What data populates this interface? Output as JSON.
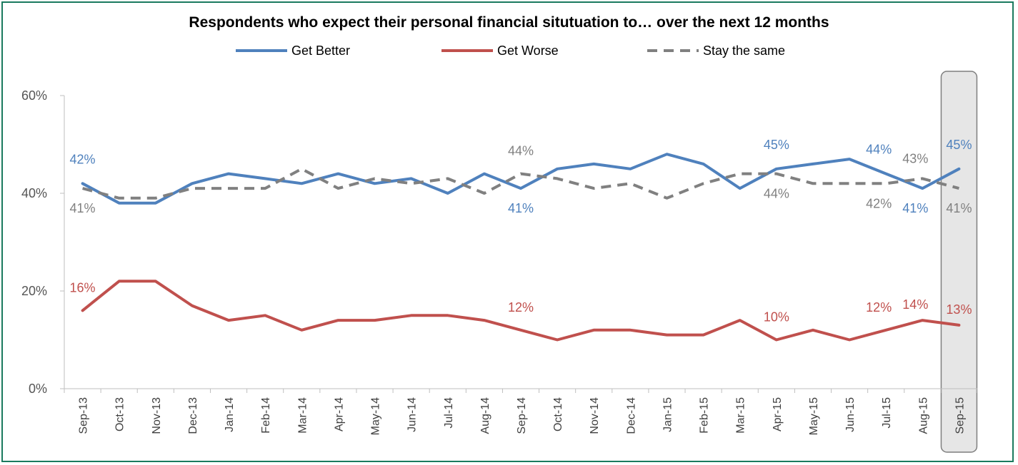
{
  "chart_data": {
    "type": "line",
    "title": "Respondents who expect their personal financial situtuation to… over the next 12 months",
    "categories": [
      "Sep-13",
      "Oct-13",
      "Nov-13",
      "Dec-13",
      "Jan-14",
      "Feb-14",
      "Mar-14",
      "Apr-14",
      "May-14",
      "Jun-14",
      "Jul-14",
      "Aug-14",
      "Sep-14",
      "Oct-14",
      "Nov-14",
      "Dec-14",
      "Jan-15",
      "Feb-15",
      "Mar-15",
      "Apr-15",
      "May-15",
      "Jun-15",
      "Jul-15",
      "Aug-15",
      "Sep-15"
    ],
    "ylim": [
      0,
      60
    ],
    "yticks": [
      0,
      20,
      40,
      60
    ],
    "ytick_labels": [
      "0%",
      "20%",
      "40%",
      "60%"
    ],
    "grid": false,
    "legend_position": "top",
    "highlight_category": "Sep-15",
    "series": [
      {
        "name": "Get Better",
        "color": "#4f81bd",
        "style": "solid",
        "values": [
          42,
          38,
          38,
          42,
          44,
          43,
          42,
          44,
          42,
          43,
          40,
          44,
          41,
          45,
          46,
          45,
          48,
          46,
          41,
          45,
          46,
          47,
          44,
          41,
          45
        ],
        "labels": [
          {
            "index": 0,
            "text": "42%"
          },
          {
            "index": 12,
            "text": "41%"
          },
          {
            "index": 19,
            "text": "45%"
          },
          {
            "index": 22,
            "text": "44%"
          },
          {
            "index": 23,
            "text": "41%"
          },
          {
            "index": 24,
            "text": "45%"
          }
        ]
      },
      {
        "name": "Get Worse",
        "color": "#c0504d",
        "style": "solid",
        "values": [
          16,
          22,
          22,
          17,
          14,
          15,
          12,
          14,
          14,
          15,
          15,
          14,
          12,
          10,
          12,
          12,
          11,
          11,
          14,
          10,
          12,
          10,
          12,
          14,
          13
        ],
        "labels": [
          {
            "index": 0,
            "text": "16%"
          },
          {
            "index": 12,
            "text": "12%"
          },
          {
            "index": 19,
            "text": "10%"
          },
          {
            "index": 22,
            "text": "12%"
          },
          {
            "index": 23,
            "text": "14%"
          },
          {
            "index": 24,
            "text": "13%"
          }
        ]
      },
      {
        "name": "Stay the same",
        "color": "#808080",
        "style": "dashed",
        "values": [
          41,
          39,
          39,
          41,
          41,
          41,
          45,
          41,
          43,
          42,
          43,
          40,
          44,
          43,
          41,
          42,
          39,
          42,
          44,
          44,
          42,
          42,
          42,
          43,
          41
        ],
        "labels": [
          {
            "index": 0,
            "text": "41%"
          },
          {
            "index": 12,
            "text": "44%"
          },
          {
            "index": 19,
            "text": "44%"
          },
          {
            "index": 22,
            "text": "42%"
          },
          {
            "index": 23,
            "text": "43%"
          },
          {
            "index": 24,
            "text": "41%"
          }
        ]
      }
    ]
  }
}
